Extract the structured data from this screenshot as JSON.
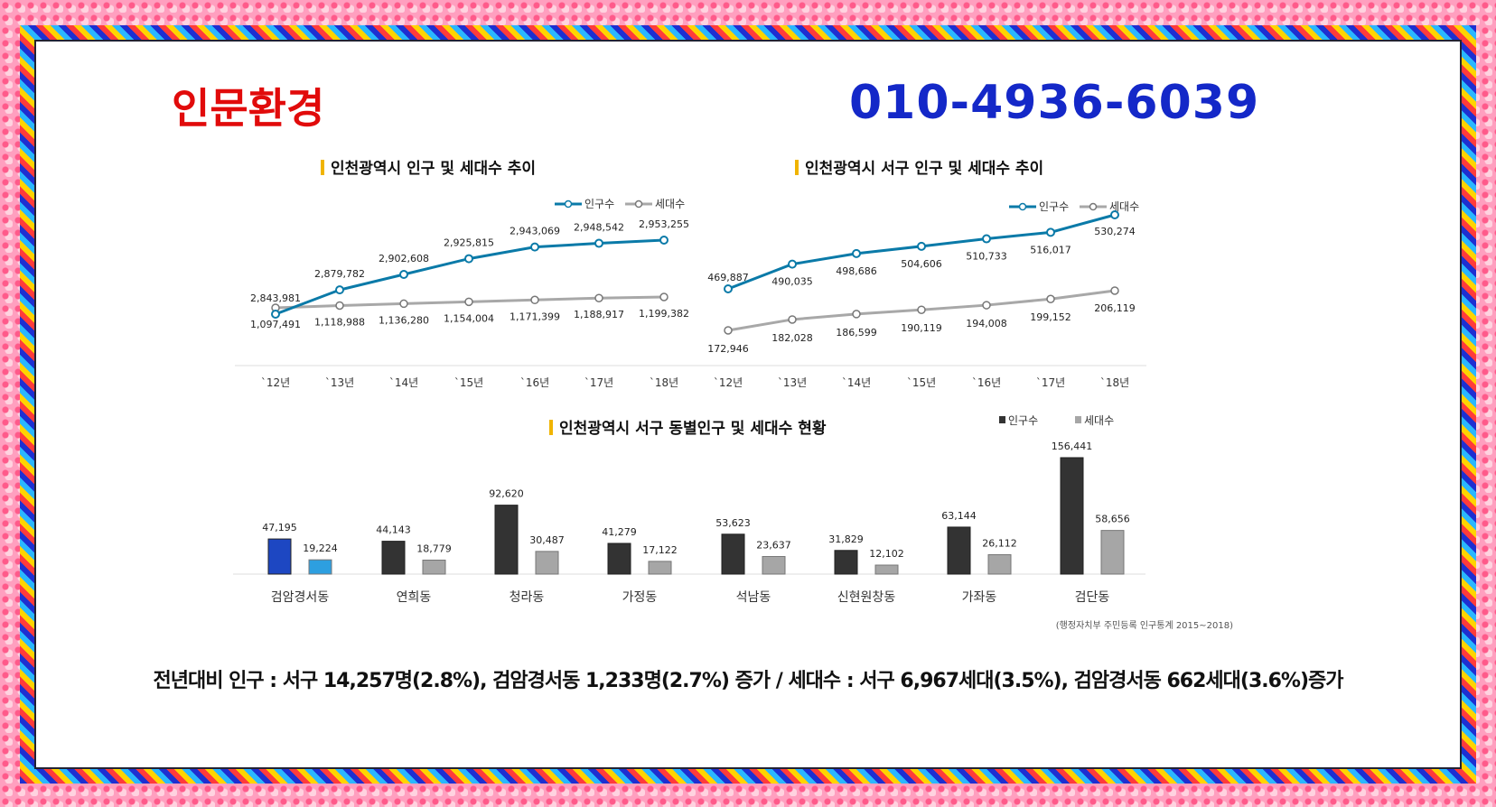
{
  "header": {
    "brand": "인문환경",
    "phone": "010-4936-6039"
  },
  "colors": {
    "population_line": "#0a7aa8",
    "households_line": "#a8a8a8",
    "bar_population": "#333333",
    "bar_households": "#a6a6a6",
    "bar_highlight_population": "#1d47c2",
    "bar_highlight_households": "#2d9fe0",
    "title_marker": "#f0b400"
  },
  "chart_data": [
    {
      "type": "line",
      "title": "인천광역시 인구 및 세대수 추이",
      "x": [
        "`12년",
        "`13년",
        "`14년",
        "`15년",
        "`16년",
        "`17년",
        "`18년"
      ],
      "series": [
        {
          "name": "인구수",
          "values": [
            2843981,
            2879782,
            2902608,
            2925815,
            2943069,
            2948542,
            2953255
          ],
          "labels": [
            "2,843,981",
            "2,879,782",
            "2,902,608",
            "2,925,815",
            "2,943,069",
            "2,948,542",
            "2,953,255"
          ]
        },
        {
          "name": "세대수",
          "values": [
            1097491,
            1118988,
            1136280,
            1154004,
            1171399,
            1188917,
            1199382
          ],
          "labels": [
            "1,097,491",
            "1,118,988",
            "1,136,280",
            "1,154,004",
            "1,171,399",
            "1,188,917",
            "1,199,382"
          ]
        }
      ],
      "legend": "top-right"
    },
    {
      "type": "line",
      "title": "인천광역시 서구 인구 및 세대수 추이",
      "x": [
        "`12년",
        "`13년",
        "`14년",
        "`15년",
        "`16년",
        "`17년",
        "`18년"
      ],
      "series": [
        {
          "name": "인구수",
          "values": [
            469887,
            490035,
            498686,
            504606,
            510733,
            516017,
            530274
          ],
          "labels": [
            "469,887",
            "490,035",
            "498,686",
            "504,606",
            "510,733",
            "516,017",
            "530,274"
          ]
        },
        {
          "name": "세대수",
          "values": [
            172946,
            182028,
            186599,
            190119,
            194008,
            199152,
            206119
          ],
          "labels": [
            "172,946",
            "182,028",
            "186,599",
            "190,119",
            "194,008",
            "199,152",
            "206,119"
          ]
        }
      ],
      "legend": "top-right"
    },
    {
      "type": "bar",
      "title": "인천광역시 서구 동별인구 및 세대수 현황",
      "categories": [
        "검암경서동",
        "연희동",
        "청라동",
        "가정동",
        "석남동",
        "신현원창동",
        "가좌동",
        "검단동"
      ],
      "series": [
        {
          "name": "인구수",
          "values": [
            47195,
            44143,
            92620,
            41279,
            53623,
            31829,
            63144,
            156441
          ],
          "labels": [
            "47,195",
            "44,143",
            "92,620",
            "41,279",
            "53,623",
            "31,829",
            "63,144",
            "156,441"
          ]
        },
        {
          "name": "세대수",
          "values": [
            19224,
            18779,
            30487,
            17122,
            23637,
            12102,
            26112,
            58656
          ],
          "labels": [
            "19,224",
            "18,779",
            "30,487",
            "17,122",
            "23,637",
            "12,102",
            "26,112",
            "58,656"
          ]
        }
      ],
      "highlight_category": "검암경서동",
      "legend": "top-right",
      "source": "(행정자치부 주민등록 인구통계 2015~2018)"
    }
  ],
  "summary": "전년대비 인구 : 서구 14,257명(2.8%), 검암경서동 1,233명(2.7%) 증가 / 세대수 : 서구 6,967세대(3.5%), 검암경서동 662세대(3.6%)증가"
}
